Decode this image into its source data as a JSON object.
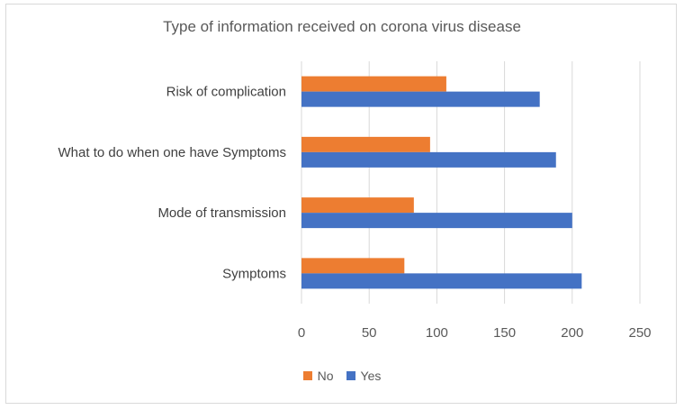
{
  "chart_data": {
    "type": "bar",
    "orientation": "horizontal",
    "title": "Type of information received on corona virus disease",
    "categories": [
      "Risk of complication",
      "What to do when one have Symptoms",
      "Mode of transmission",
      "Symptoms"
    ],
    "series": [
      {
        "name": "No",
        "color": "#ED7D31",
        "values": [
          107,
          95,
          83,
          76
        ]
      },
      {
        "name": "Yes",
        "color": "#4472C4",
        "values": [
          176,
          188,
          200,
          207
        ]
      }
    ],
    "xlim": [
      0,
      250
    ],
    "xticks": [
      "0",
      "50",
      "100",
      "150",
      "200",
      "250"
    ],
    "grid": true,
    "legend_position": "bottom"
  }
}
